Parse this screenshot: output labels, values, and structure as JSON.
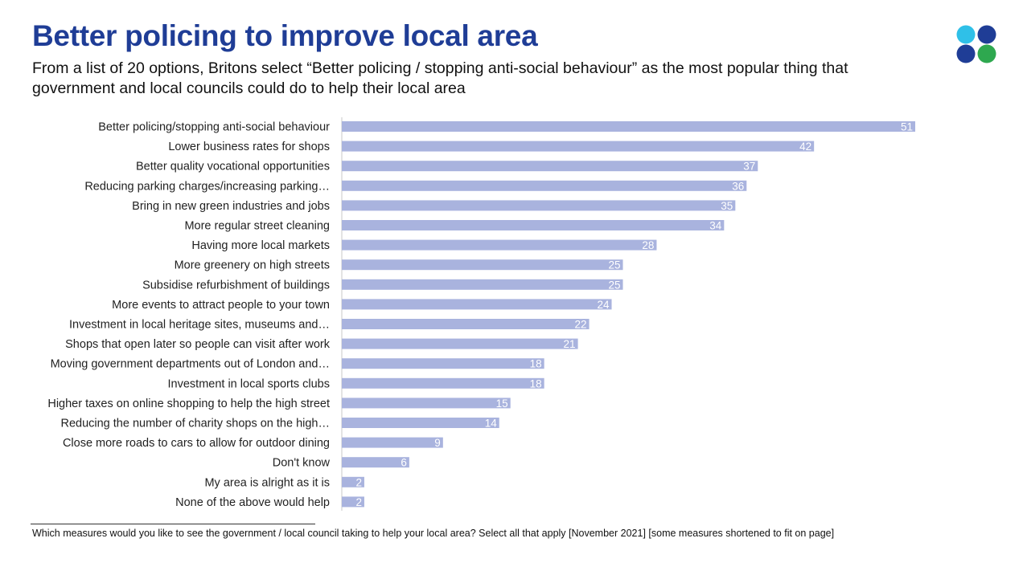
{
  "header": {
    "title": "Better policing to improve local area",
    "subtitle": "From a list of 20 options, Britons select “Better policing / stopping anti-social behaviour” as the most popular thing that government and local councils could do to help their local area"
  },
  "logo": {
    "icon": "brand-logo-icon",
    "colors": [
      "#1f3d96",
      "#2fc0e8",
      "#2ea84f"
    ]
  },
  "chart_data": {
    "type": "bar",
    "orientation": "horizontal",
    "title": "Better policing to improve local area",
    "xlabel": "",
    "ylabel": "",
    "xlim": [
      0,
      51
    ],
    "bar_color": "#a9b3de",
    "value_label_color": "#ffffff",
    "categories": [
      "Better policing/stopping anti-social behaviour",
      "Lower business rates for shops",
      "Better quality vocational opportunities",
      "Reducing parking charges/increasing parking…",
      "Bring in new green industries and jobs",
      "More regular street cleaning",
      "Having more local markets",
      "More greenery on high streets",
      "Subsidise refurbishment of buildings",
      "More events to attract people to your town",
      "Investment in local heritage sites, museums and…",
      "Shops that open later so people can visit after work",
      "Moving government departments out of London and…",
      "Investment in local sports clubs",
      "Higher taxes on online shopping to help the high street",
      "Reducing the number of charity shops on the high…",
      "Close more roads to cars to allow for outdoor dining",
      "Don't know",
      "My area is alright as it is",
      "None of the above would help"
    ],
    "values": [
      51,
      42,
      37,
      36,
      35,
      34,
      28,
      25,
      25,
      24,
      22,
      21,
      18,
      18,
      15,
      14,
      9,
      6,
      2,
      2
    ]
  },
  "footnote": "Which measures would you like to see the government / local council taking to help your local area? Select all that apply [November 2021] [some measures shortened to fit on page]"
}
